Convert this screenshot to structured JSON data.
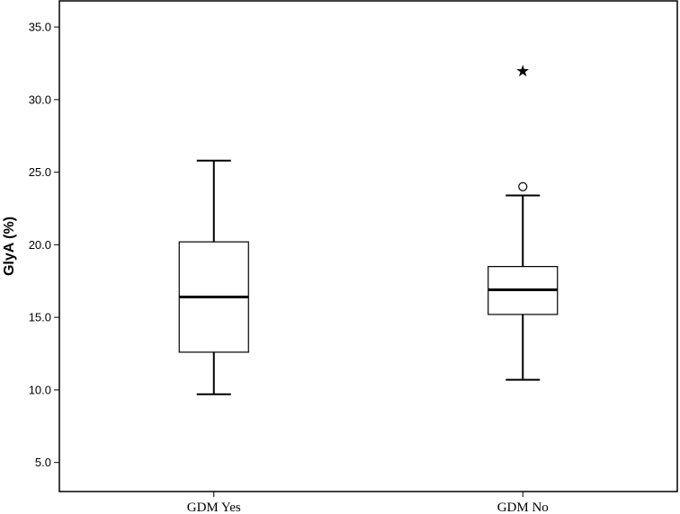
{
  "chart_data": {
    "type": "box",
    "title": "",
    "xlabel": "",
    "ylabel": "GlyA (%)",
    "ylim": [
      3.0,
      36.8
    ],
    "yticks": [
      "5.0",
      "10.0",
      "15.0",
      "20.0",
      "25.0",
      "30.0",
      "35.0"
    ],
    "grid": false,
    "categories": [
      "GDM Yes",
      "GDM No"
    ],
    "series": [
      {
        "category": "GDM Yes",
        "min": 9.7,
        "q1": 12.6,
        "median": 16.4,
        "q3": 20.2,
        "max": 25.8,
        "outliers": [],
        "extremes": []
      },
      {
        "category": "GDM No",
        "min": 10.7,
        "q1": 15.2,
        "median": 16.9,
        "q3": 18.5,
        "max": 23.4,
        "outliers": [
          24.0
        ],
        "extremes": [
          32.1
        ]
      }
    ]
  }
}
